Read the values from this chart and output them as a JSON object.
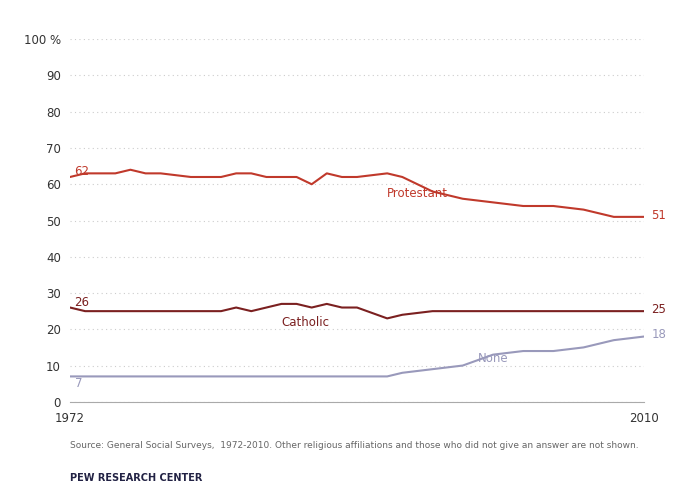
{
  "protestant": {
    "years": [
      1972,
      1973,
      1974,
      1975,
      1976,
      1977,
      1978,
      1980,
      1982,
      1983,
      1984,
      1985,
      1986,
      1987,
      1988,
      1989,
      1990,
      1991,
      1993,
      1994,
      1996,
      1998,
      2000,
      2002,
      2004,
      2006,
      2008,
      2010
    ],
    "values": [
      62,
      63,
      63,
      63,
      64,
      63,
      63,
      62,
      62,
      63,
      63,
      62,
      62,
      62,
      60,
      63,
      62,
      62,
      63,
      62,
      58,
      56,
      55,
      54,
      54,
      53,
      51,
      51
    ]
  },
  "catholic": {
    "years": [
      1972,
      1973,
      1974,
      1975,
      1976,
      1977,
      1978,
      1980,
      1982,
      1983,
      1984,
      1985,
      1986,
      1987,
      1988,
      1989,
      1990,
      1991,
      1993,
      1994,
      1996,
      1998,
      2000,
      2002,
      2004,
      2006,
      2008,
      2010
    ],
    "values": [
      26,
      25,
      25,
      25,
      25,
      25,
      25,
      25,
      25,
      26,
      25,
      26,
      27,
      27,
      26,
      27,
      26,
      26,
      23,
      24,
      25,
      25,
      25,
      25,
      25,
      25,
      25,
      25
    ]
  },
  "none": {
    "years": [
      1972,
      1973,
      1974,
      1975,
      1976,
      1977,
      1978,
      1980,
      1982,
      1983,
      1984,
      1985,
      1986,
      1987,
      1988,
      1989,
      1990,
      1991,
      1993,
      1994,
      1996,
      1998,
      2000,
      2002,
      2004,
      2006,
      2008,
      2010
    ],
    "values": [
      7,
      7,
      7,
      7,
      7,
      7,
      7,
      7,
      7,
      7,
      7,
      7,
      7,
      7,
      7,
      7,
      7,
      7,
      7,
      8,
      9,
      10,
      13,
      14,
      14,
      15,
      17,
      18
    ]
  },
  "protestant_color": "#c0392b",
  "catholic_color": "#7b2020",
  "none_color": "#9999bb",
  "source_text": "Source: General Social Surveys,  1972-2010. Other religious affiliations and those who did not give an answer are not shown.",
  "pew_text": "PEW RESEARCH CENTER",
  "ylim": [
    0,
    100
  ],
  "yticks": [
    0,
    10,
    20,
    30,
    40,
    50,
    60,
    70,
    80,
    90,
    100
  ],
  "xlim": [
    1972,
    2010
  ],
  "bg_color": "#ffffff",
  "grid_color": "#cccccc"
}
